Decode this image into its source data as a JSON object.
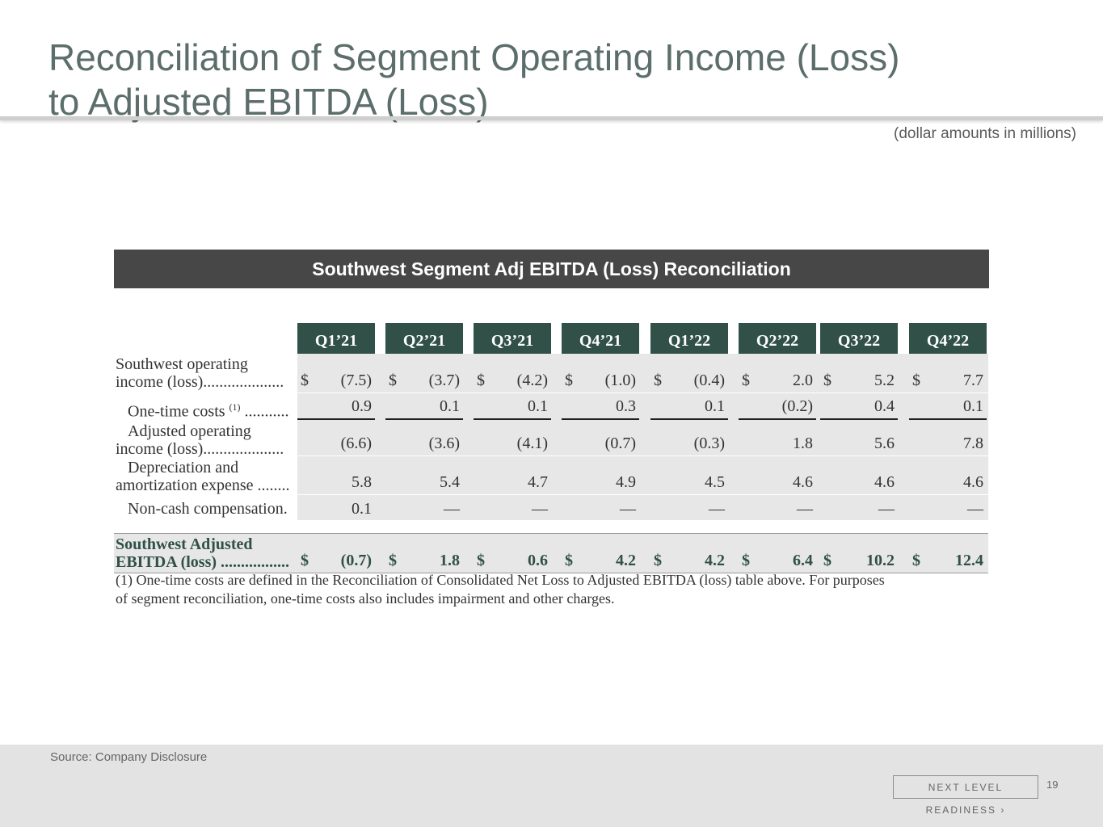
{
  "title": {
    "line1": "Reconciliation of Segment Operating Income (Loss)",
    "line2": "to Adjusted EBITDA (Loss)"
  },
  "units_note": "(dollar amounts in millions)",
  "banner": "Southwest Segment Adj EBITDA (Loss) Reconciliation",
  "table": {
    "columns": [
      "Q1’21",
      "Q2’21",
      "Q3’21",
      "Q4’21",
      "Q1’22",
      "Q2’22",
      "Q3’22",
      "Q4’22"
    ],
    "currency_symbol": "$",
    "rows": {
      "operating_income": {
        "label1": "Southwest operating",
        "label2": "income (loss)....................",
        "values": [
          "(7.5)",
          "(3.7)",
          "(4.2)",
          "(1.0)",
          "(0.4)",
          "2.0",
          "5.2",
          "7.7"
        ]
      },
      "one_time": {
        "label": "One-time costs",
        "footnote_marker": "(1)",
        "dots": "...........",
        "values": [
          "0.9",
          "0.1",
          "0.1",
          "0.3",
          "0.1",
          "(0.2)",
          "0.4",
          "0.1"
        ]
      },
      "adjusted_operating": {
        "label1": "Adjusted operating",
        "label2": "income (loss)....................",
        "values": [
          "(6.6)",
          "(3.6)",
          "(4.1)",
          "(0.7)",
          "(0.3)",
          "1.8",
          "5.6",
          "7.8"
        ]
      },
      "depreciation": {
        "label1": "Depreciation and",
        "label2": "amortization expense ........",
        "values": [
          "5.8",
          "5.4",
          "4.7",
          "4.9",
          "4.5",
          "4.6",
          "4.6",
          "4.6"
        ]
      },
      "non_cash": {
        "label": "Non-cash compensation.",
        "values": [
          "0.1",
          "—",
          "—",
          "—",
          "—",
          "—",
          "—",
          "—"
        ]
      },
      "adjusted_ebitda": {
        "label1": "Southwest Adjusted",
        "label2": "EBITDA (loss) .................",
        "values": [
          "(0.7)",
          "1.8",
          "0.6",
          "4.2",
          "4.2",
          "6.4",
          "10.2",
          "12.4"
        ]
      }
    },
    "footnote": "(1) One-time costs are defined in the Reconciliation of Consolidated Net Loss to Adjusted EBITDA (loss) table above. For purposes of segment reconciliation, one-time costs also includes impairment and other charges."
  },
  "footer": {
    "source": "Source: Company Disclosure",
    "tagline": "NEXT LEVEL READINESS",
    "tagline_chevron": "›",
    "page_number": "19"
  }
}
